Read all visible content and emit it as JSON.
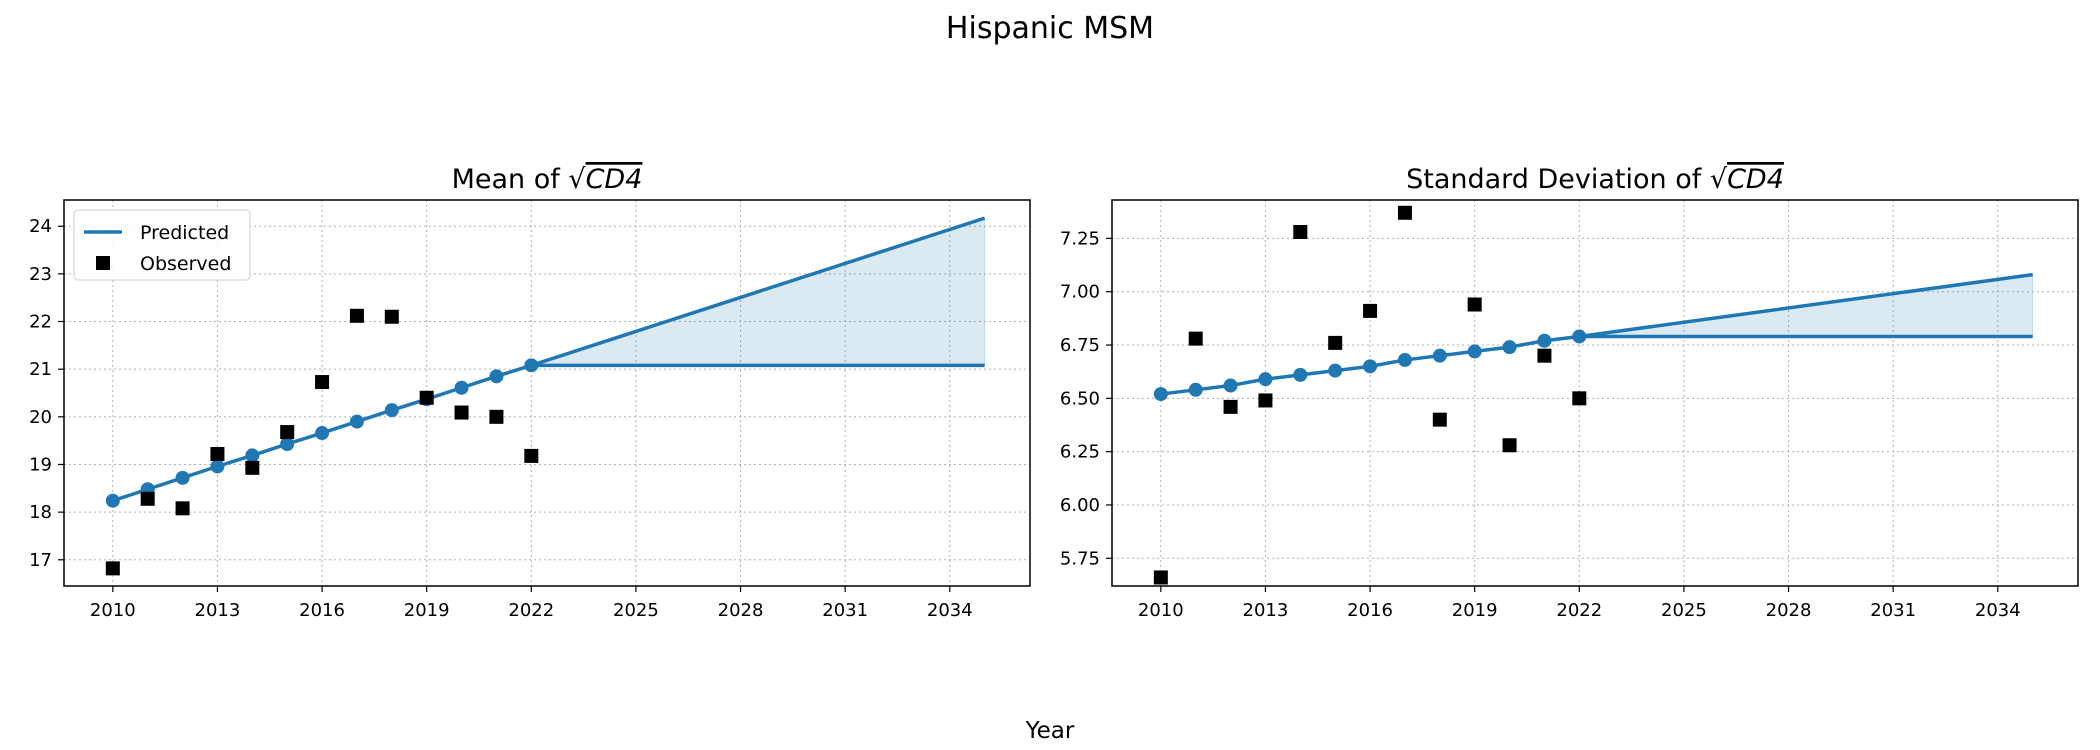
{
  "suptitle": "Hispanic MSM",
  "xlabel": "Year",
  "colors": {
    "predicted": "#1f77b4",
    "observed": "#000000",
    "band": "#1f77b4",
    "grid": "#b0b0b0"
  },
  "chart_data": [
    {
      "type": "line",
      "title_prefix": "Mean of ",
      "title_math": "CD4",
      "xlim": [
        2008.6,
        2036.3
      ],
      "ylim": [
        16.45,
        24.55
      ],
      "xticks": [
        2010,
        2013,
        2016,
        2019,
        2022,
        2025,
        2028,
        2031,
        2034
      ],
      "yticks": [
        17,
        18,
        19,
        20,
        21,
        22,
        23,
        24
      ],
      "ytick_decimals": 0,
      "grid": true,
      "legend": {
        "placement": "upper-left",
        "entries": [
          "Predicted",
          "Observed"
        ]
      },
      "predicted": {
        "name": "Predicted",
        "x": [
          2010,
          2011,
          2012,
          2013,
          2014,
          2015,
          2016,
          2017,
          2018,
          2019,
          2020,
          2021,
          2022
        ],
        "y": [
          18.24,
          18.48,
          18.72,
          18.96,
          19.19,
          19.43,
          19.66,
          19.9,
          20.14,
          20.37,
          20.61,
          20.85,
          21.08
        ]
      },
      "projection": {
        "x": [
          2022,
          2035
        ],
        "upper": [
          21.08,
          24.17
        ],
        "lower": [
          21.08,
          21.08
        ]
      },
      "observed": {
        "name": "Observed",
        "x": [
          2010,
          2011,
          2012,
          2013,
          2014,
          2015,
          2016,
          2017,
          2018,
          2019,
          2020,
          2021,
          2022
        ],
        "y": [
          16.82,
          18.28,
          18.08,
          19.22,
          18.93,
          19.68,
          20.73,
          22.12,
          22.1,
          20.4,
          20.09,
          20.0,
          19.18
        ]
      }
    },
    {
      "type": "line",
      "title_prefix": "Standard Deviation of ",
      "title_math": "CD4",
      "xlim": [
        2008.6,
        2036.3
      ],
      "ylim": [
        5.62,
        7.43
      ],
      "xticks": [
        2010,
        2013,
        2016,
        2019,
        2022,
        2025,
        2028,
        2031,
        2034
      ],
      "yticks": [
        5.75,
        6.0,
        6.25,
        6.5,
        6.75,
        7.0,
        7.25
      ],
      "ytick_decimals": 2,
      "grid": true,
      "predicted": {
        "name": "Predicted",
        "x": [
          2010,
          2011,
          2012,
          2013,
          2014,
          2015,
          2016,
          2017,
          2018,
          2019,
          2020,
          2021,
          2022
        ],
        "y": [
          6.52,
          6.54,
          6.56,
          6.59,
          6.61,
          6.63,
          6.65,
          6.68,
          6.7,
          6.72,
          6.74,
          6.77,
          6.79
        ]
      },
      "projection": {
        "x": [
          2022,
          2035
        ],
        "upper": [
          6.79,
          7.08
        ],
        "lower": [
          6.79,
          6.79
        ]
      },
      "observed": {
        "name": "Observed",
        "x": [
          2010,
          2011,
          2012,
          2013,
          2014,
          2015,
          2016,
          2017,
          2018,
          2019,
          2020,
          2021,
          2022
        ],
        "y": [
          5.66,
          6.78,
          6.46,
          6.49,
          7.28,
          6.76,
          6.91,
          7.37,
          6.4,
          6.94,
          6.28,
          6.7,
          6.5
        ]
      }
    }
  ]
}
